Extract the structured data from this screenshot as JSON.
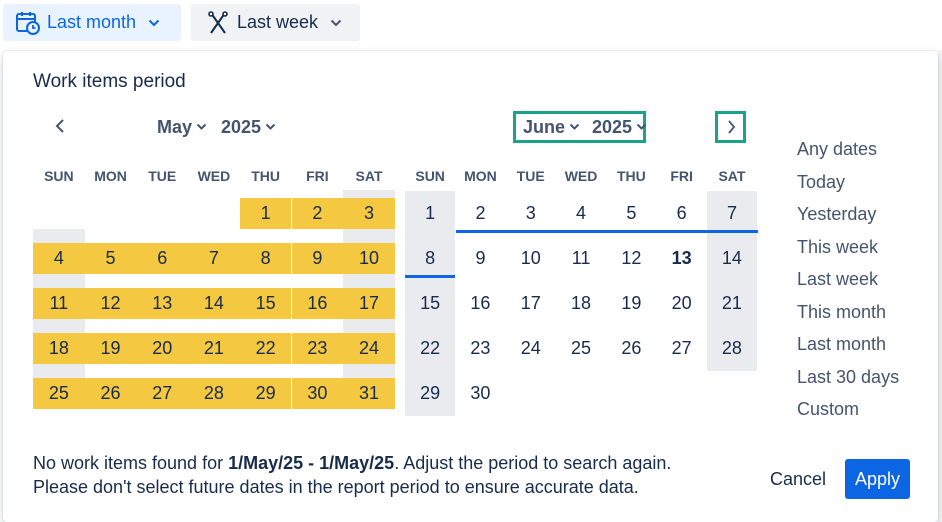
{
  "toolbar": {
    "primary_filter": {
      "label": "Last month",
      "icon": "calendar-clock-icon"
    },
    "secondary_filter": {
      "label": "Last week",
      "icon": "compare-icon"
    }
  },
  "panel": {
    "title": "Work items period",
    "left_month": {
      "month": "May",
      "year": "2025"
    },
    "right_month": {
      "month": "June",
      "year": "2025"
    },
    "weekdays": [
      "SUN",
      "MON",
      "TUE",
      "WED",
      "THU",
      "FRI",
      "SAT"
    ],
    "may_days": [
      "1",
      "2",
      "3",
      "4",
      "5",
      "6",
      "7",
      "8",
      "9",
      "10",
      "11",
      "12",
      "13",
      "14",
      "15",
      "16",
      "17",
      "18",
      "19",
      "20",
      "21",
      "22",
      "23",
      "24",
      "25",
      "26",
      "27",
      "28",
      "29",
      "30",
      "31"
    ],
    "june_days": [
      "1",
      "2",
      "3",
      "4",
      "5",
      "6",
      "7",
      "8",
      "9",
      "10",
      "11",
      "12",
      "13",
      "14",
      "15",
      "16",
      "17",
      "18",
      "19",
      "20",
      "21",
      "22",
      "23",
      "24",
      "25",
      "26",
      "27",
      "28",
      "29",
      "30"
    ],
    "june_today": "13",
    "quick_ranges": [
      "Any dates",
      "Today",
      "Yesterday",
      "This week",
      "Last week",
      "This month",
      "Last month",
      "Last 30 days",
      "Custom"
    ],
    "message": {
      "prefix": "No work items found for ",
      "range": "1/May/25 - 1/May/25",
      "suffix": ". Adjust the period to search again.",
      "line2": "Please don't select future dates in the report period to ensure accurate data."
    },
    "cancel_label": "Cancel",
    "apply_label": "Apply"
  },
  "colors": {
    "selection": "#f5c842",
    "accent": "#0c66e4",
    "highlight_outline": "#1aa38a"
  }
}
